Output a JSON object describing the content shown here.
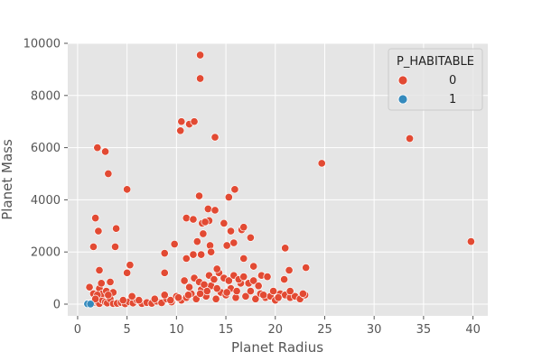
{
  "chart_data": {
    "type": "scatter",
    "title": "",
    "xlabel": "Planet Radius",
    "ylabel": "Planet Mass",
    "xlim": [
      -1,
      41.5
    ],
    "ylim": [
      -450,
      10000
    ],
    "xticks": [
      0,
      5,
      10,
      15,
      20,
      25,
      30,
      35,
      40
    ],
    "yticks": [
      0,
      2000,
      4000,
      6000,
      8000,
      10000
    ],
    "grid": true,
    "legend": {
      "title": "P_HABITABLE",
      "placement": "top-right"
    },
    "series": [
      {
        "name": "0",
        "color": "#e24a33",
        "points": [
          [
            1.0,
            10
          ],
          [
            1.3,
            30
          ],
          [
            1.6,
            60
          ],
          [
            2.0,
            100
          ],
          [
            2.2,
            20
          ],
          [
            2.5,
            150
          ],
          [
            2.8,
            80
          ],
          [
            3.0,
            40
          ],
          [
            3.3,
            200
          ],
          [
            3.6,
            20
          ],
          [
            4.0,
            30
          ],
          [
            4.4,
            60
          ],
          [
            4.8,
            10
          ],
          [
            5.2,
            90
          ],
          [
            5.6,
            40
          ],
          [
            6.0,
            150
          ],
          [
            6.5,
            20
          ],
          [
            7.0,
            60
          ],
          [
            7.5,
            30
          ],
          [
            8.0,
            110
          ],
          [
            8.5,
            50
          ],
          [
            9.0,
            200
          ],
          [
            9.5,
            80
          ],
          [
            10.0,
            300
          ],
          [
            10.5,
            150
          ],
          [
            11.0,
            250
          ],
          [
            11.5,
            400
          ],
          [
            12.0,
            200
          ],
          [
            12.5,
            550
          ],
          [
            13.0,
            300
          ],
          [
            13.5,
            700
          ],
          [
            14.0,
            200
          ],
          [
            14.5,
            450
          ],
          [
            15.0,
            350
          ],
          [
            15.5,
            600
          ],
          [
            16.0,
            250
          ],
          [
            16.5,
            800
          ],
          [
            17.0,
            300
          ],
          [
            17.5,
            500
          ],
          [
            18.0,
            200
          ],
          [
            18.5,
            400
          ],
          [
            19.0,
            250
          ],
          [
            19.5,
            300
          ],
          [
            20.0,
            150
          ],
          [
            20.5,
            400
          ],
          [
            21.0,
            350
          ],
          [
            21.5,
            250
          ],
          [
            22.0,
            300
          ],
          [
            22.5,
            200
          ],
          [
            23.0,
            350
          ],
          [
            10.8,
            900
          ],
          [
            11.3,
            650
          ],
          [
            11.8,
            1000
          ],
          [
            12.3,
            850
          ],
          [
            12.8,
            750
          ],
          [
            13.3,
            1100
          ],
          [
            13.8,
            950
          ],
          [
            14.3,
            1200
          ],
          [
            14.8,
            1000
          ],
          [
            15.3,
            900
          ],
          [
            15.8,
            1100
          ],
          [
            16.3,
            950
          ],
          [
            16.8,
            1050
          ],
          [
            17.3,
            800
          ],
          [
            17.8,
            900
          ],
          [
            18.3,
            700
          ],
          [
            12.4,
            400
          ],
          [
            13.1,
            500
          ],
          [
            14.1,
            600
          ],
          [
            15.1,
            450
          ],
          [
            16.1,
            500
          ],
          [
            11.2,
            350
          ],
          [
            10.2,
            250
          ],
          [
            9.4,
            150
          ],
          [
            8.8,
            350
          ],
          [
            18.8,
            350
          ],
          [
            19.8,
            500
          ],
          [
            20.3,
            250
          ],
          [
            22.8,
            400
          ],
          [
            21.5,
            500
          ],
          [
            2.2,
            600
          ],
          [
            2.5,
            400
          ],
          [
            2.9,
            500
          ],
          [
            3.3,
            850
          ],
          [
            3.6,
            450
          ],
          [
            1.6,
            400
          ],
          [
            2.0,
            350
          ],
          [
            4.6,
            150
          ],
          [
            5.5,
            300
          ],
          [
            7.8,
            200
          ],
          [
            1.2,
            650
          ],
          [
            1.8,
            200
          ],
          [
            6.2,
            150
          ],
          [
            3.1,
            350
          ],
          [
            2.4,
            800
          ],
          [
            1.8,
            3300
          ],
          [
            1.6,
            2200
          ],
          [
            2.1,
            2800
          ],
          [
            2.2,
            1300
          ],
          [
            2.0,
            6000
          ],
          [
            2.8,
            5850
          ],
          [
            3.1,
            5000
          ],
          [
            3.9,
            2900
          ],
          [
            3.8,
            2200
          ],
          [
            5.0,
            4400
          ],
          [
            5.0,
            1200
          ],
          [
            5.3,
            1500
          ],
          [
            8.8,
            1950
          ],
          [
            8.8,
            1200
          ],
          [
            9.8,
            2300
          ],
          [
            10.4,
            6650
          ],
          [
            10.5,
            7000
          ],
          [
            11.3,
            6900
          ],
          [
            11.8,
            7000
          ],
          [
            12.4,
            9550
          ],
          [
            12.4,
            8650
          ],
          [
            13.9,
            6400
          ],
          [
            12.3,
            4150
          ],
          [
            11.0,
            3300
          ],
          [
            11.7,
            3250
          ],
          [
            12.6,
            3100
          ],
          [
            13.2,
            3650
          ],
          [
            13.3,
            3200
          ],
          [
            13.9,
            3600
          ],
          [
            12.9,
            3150
          ],
          [
            12.1,
            2400
          ],
          [
            12.7,
            2700
          ],
          [
            13.4,
            2250
          ],
          [
            13.5,
            2000
          ],
          [
            14.8,
            3100
          ],
          [
            15.3,
            4100
          ],
          [
            15.9,
            4400
          ],
          [
            15.5,
            2800
          ],
          [
            15.8,
            2350
          ],
          [
            16.6,
            2850
          ],
          [
            16.8,
            2950
          ],
          [
            17.5,
            2550
          ],
          [
            15.1,
            2250
          ],
          [
            11.0,
            1750
          ],
          [
            11.7,
            1900
          ],
          [
            12.5,
            1900
          ],
          [
            16.8,
            1750
          ],
          [
            14.1,
            1350
          ],
          [
            17.8,
            1450
          ],
          [
            18.6,
            1100
          ],
          [
            19.2,
            1050
          ],
          [
            20.9,
            950
          ],
          [
            21.0,
            2150
          ],
          [
            21.4,
            1300
          ],
          [
            23.1,
            1400
          ],
          [
            24.7,
            5400
          ],
          [
            33.6,
            6350
          ],
          [
            39.8,
            2400
          ]
        ]
      },
      {
        "name": "1",
        "color": "#348abd",
        "points": [
          [
            1.0,
            10
          ],
          [
            1.3,
            5
          ]
        ]
      }
    ]
  }
}
